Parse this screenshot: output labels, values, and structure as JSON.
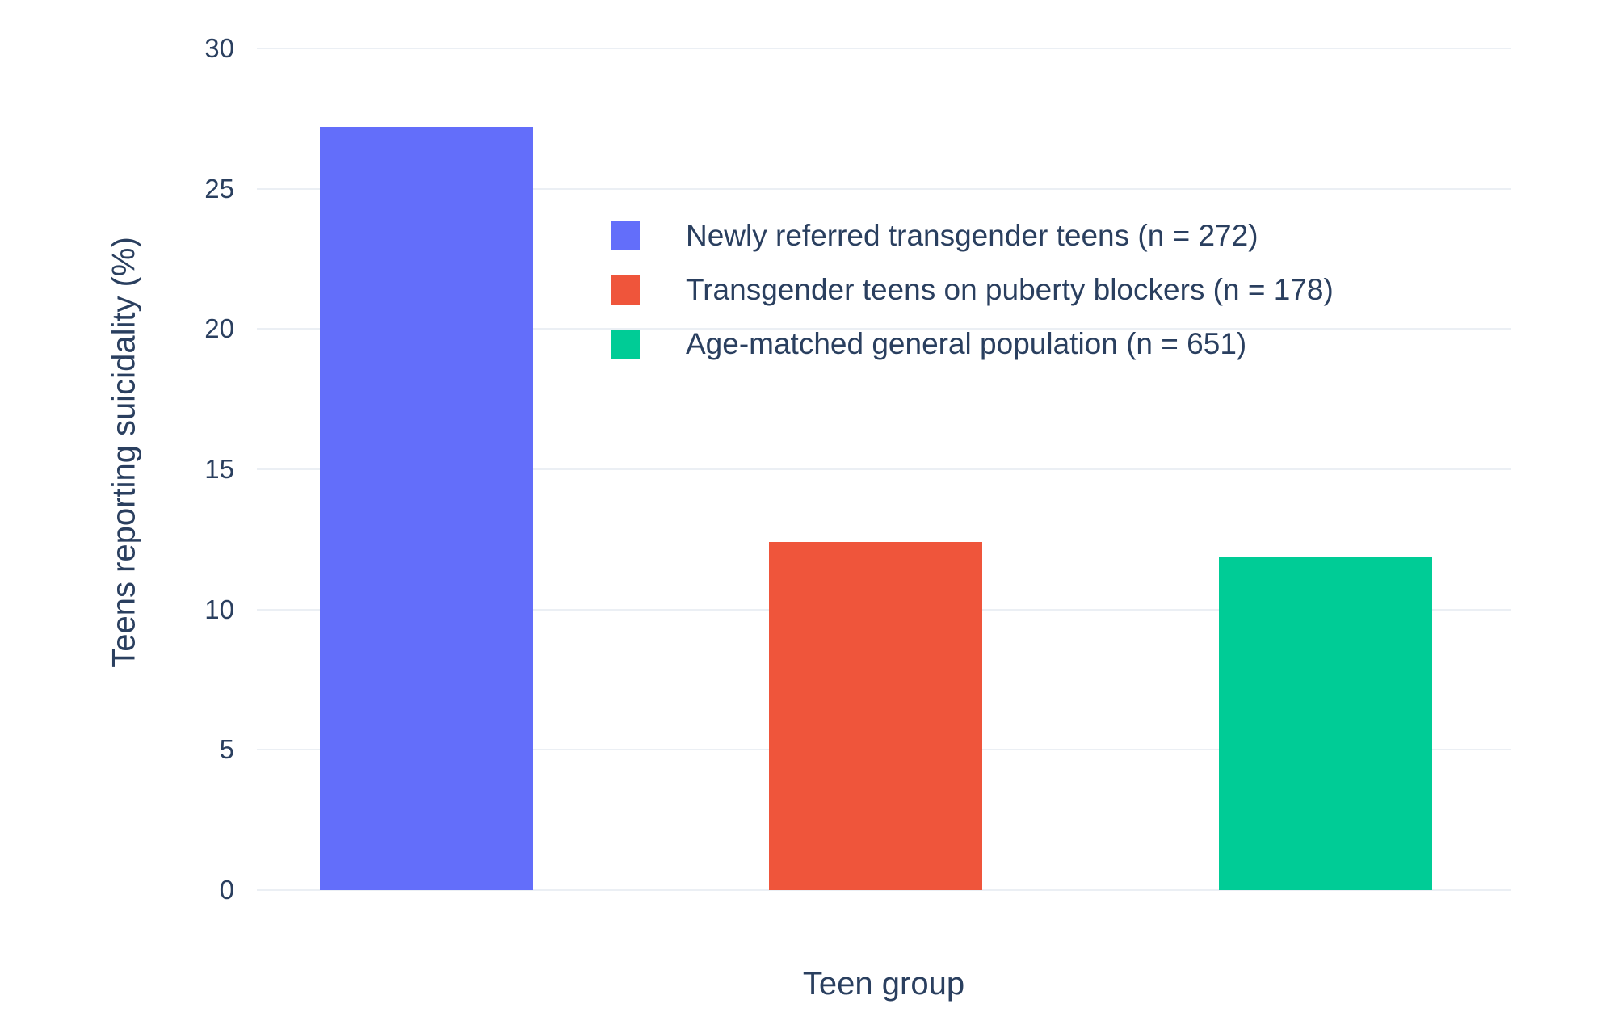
{
  "chart_data": {
    "type": "bar",
    "title": "",
    "xlabel": "Teen group",
    "ylabel": "Teens reporting suicidality (%)",
    "ylim": [
      0,
      30
    ],
    "yticks": [
      0,
      5,
      10,
      15,
      20,
      25,
      30
    ],
    "grid": true,
    "legend_position": "inside top-center",
    "series": [
      {
        "name": "Newly referred transgender teens (n = 272)",
        "value": 27.2,
        "color": "#636EFA"
      },
      {
        "name": "Transgender teens on puberty blockers (n = 178)",
        "value": 12.4,
        "color": "#EF553B"
      },
      {
        "name": "Age-matched general population (n = 651)",
        "value": 11.9,
        "color": "#00CC96"
      }
    ]
  },
  "colors": {
    "background": "#FFFFFF",
    "gridline": "#EBEFF4",
    "text": "#2A3F5F"
  }
}
